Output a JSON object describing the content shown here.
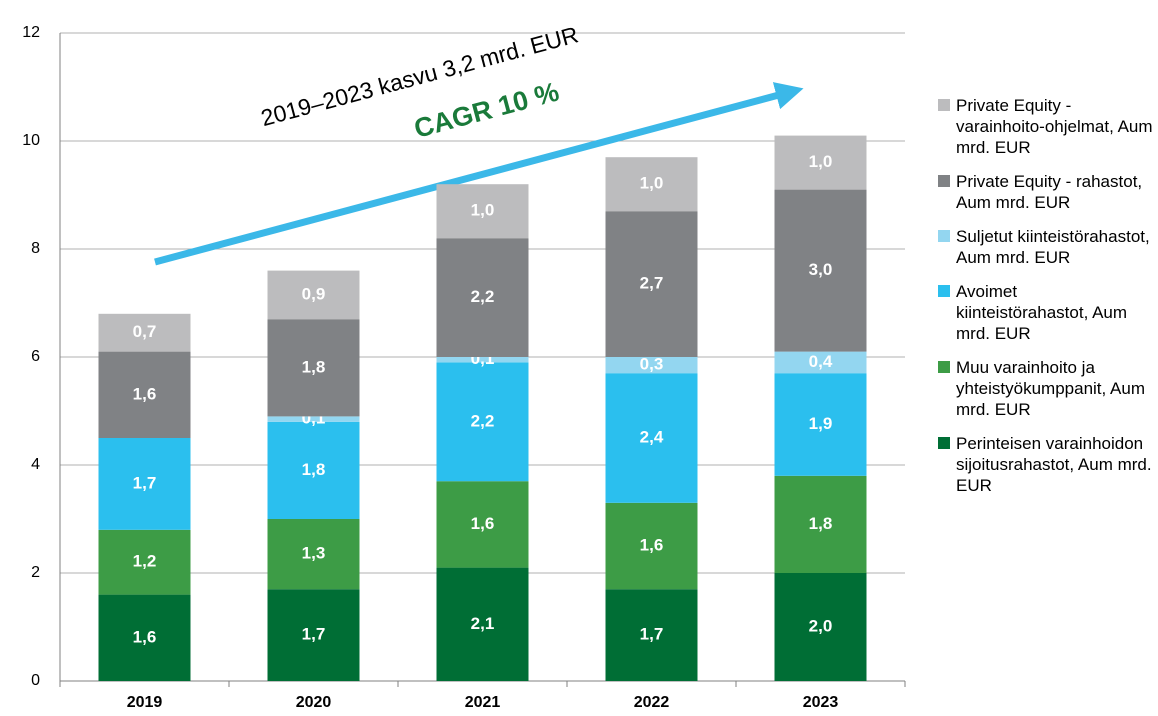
{
  "chart_data": {
    "type": "stacked_bar",
    "categories": [
      "2019",
      "2020",
      "2021",
      "2022",
      "2023"
    ],
    "series": [
      {
        "name": "Perinteisen varainhoidon sijoitusrahastot, Aum mrd. EUR",
        "color": "#006e35",
        "values": [
          1.6,
          1.7,
          2.1,
          1.7,
          2.0
        ],
        "value_labels": [
          "1,6",
          "1,7",
          "2,1",
          "1,7",
          "2,0"
        ]
      },
      {
        "name": "Muu varainhoito ja yhteistyökumppanit, Aum mrd. EUR",
        "color": "#3d9c46",
        "values": [
          1.2,
          1.3,
          1.6,
          1.6,
          1.8
        ],
        "value_labels": [
          "1,2",
          "1,3",
          "1,6",
          "1,6",
          "1,8"
        ]
      },
      {
        "name": "Avoimet kiinteistörahastot, Aum mrd. EUR",
        "color": "#2bbfee",
        "values": [
          1.7,
          1.8,
          2.2,
          2.4,
          1.9
        ],
        "value_labels": [
          "1,7",
          "1,8",
          "2,2",
          "2,4",
          "1,9"
        ]
      },
      {
        "name": "Suljetut kiinteistörahastot, Aum mrd. EUR",
        "color": "#93d6f0",
        "values": [
          null,
          0.1,
          0.1,
          0.3,
          0.4
        ],
        "value_labels": [
          null,
          "0,1",
          "0,1",
          "0,3",
          "0,4"
        ]
      },
      {
        "name": "Private Equity - rahastot, Aum mrd. EUR",
        "color": "#808285",
        "values": [
          1.6,
          1.8,
          2.2,
          2.7,
          3.0
        ],
        "value_labels": [
          "1,6",
          "1,8",
          "2,2",
          "2,7",
          "3,0"
        ]
      },
      {
        "name": "Private Equity - varainhoito-ohjelmat, Aum mrd. EUR",
        "color": "#bcbcbe",
        "values": [
          0.7,
          0.9,
          1.0,
          1.0,
          1.0
        ],
        "value_labels": [
          "0,7",
          "0,9",
          "1,0",
          "1,0",
          "1,0"
        ]
      }
    ],
    "ylim": [
      0,
      12
    ],
    "yticks": [
      0,
      2,
      4,
      6,
      8,
      10,
      12
    ],
    "grid": true,
    "legend": "right",
    "annotations": [
      "2019–2023 kasvu 3,2 mrd. EUR",
      "CAGR 10 %"
    ]
  }
}
